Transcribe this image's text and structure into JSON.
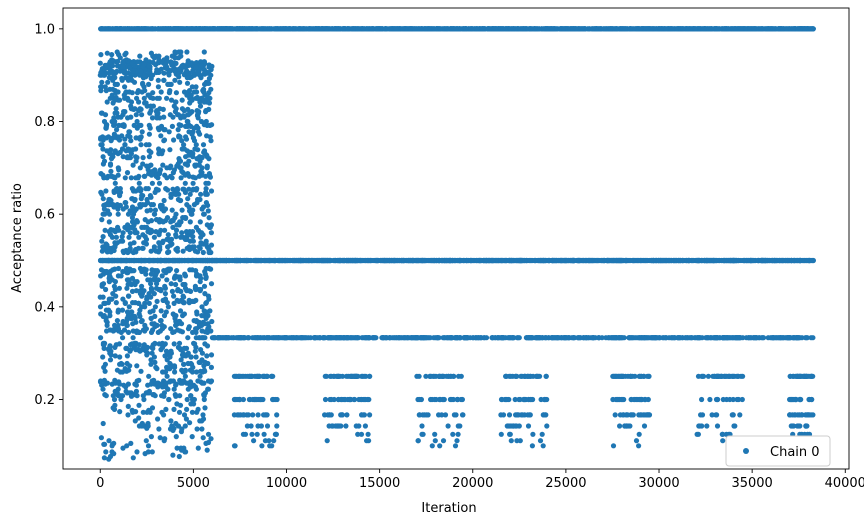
{
  "chart_data": {
    "type": "scatter",
    "title": "",
    "xlabel": "Iteration",
    "ylabel": "Acceptance ratio",
    "xlim": [
      -2000,
      40200
    ],
    "ylim": [
      0.05,
      1.045
    ],
    "xticks": [
      0,
      5000,
      10000,
      15000,
      20000,
      25000,
      30000,
      35000,
      40000
    ],
    "xtick_labels": [
      "0",
      "5000",
      "10000",
      "15000",
      "20000",
      "25000",
      "30000",
      "35000",
      "40000"
    ],
    "yticks": [
      0.2,
      0.4,
      0.6,
      0.8,
      1.0
    ],
    "ytick_labels": [
      "0.2",
      "0.4",
      "0.6",
      "0.8",
      "1.0"
    ],
    "grid": false,
    "legend": {
      "placement": "lower-right",
      "entries": [
        "Chain 0"
      ]
    },
    "series": [
      {
        "name": "Chain 0",
        "color": "#1f77b4",
        "marker": "circle",
        "x_range": [
          0,
          38300
        ],
        "description_levels": [
          1.0,
          0.5,
          0.3333,
          0.25,
          0.2,
          0.1667,
          0.1429,
          0.125,
          0.1111,
          0.1
        ],
        "early_phase_end": 6000,
        "values_summary": "Iterations 0-6000: ratios spread 0.07-0.94; after 6000: discrete levels 1.0, 0.5, 1/3, 1/4, 1/5, 1/6, 1/7, 1/8, 1/9, 1/10"
      }
    ]
  }
}
